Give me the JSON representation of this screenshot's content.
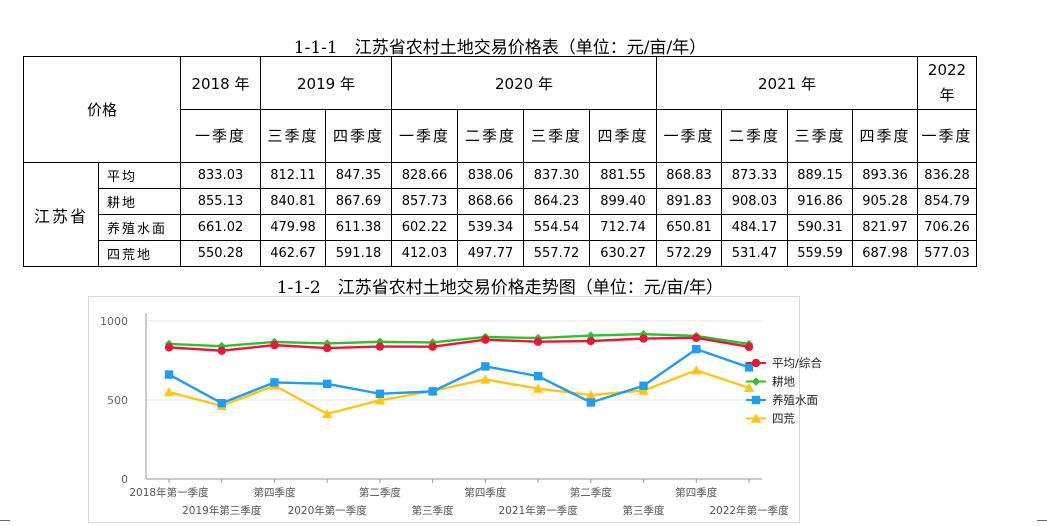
{
  "table": {
    "title": "1-1-1　江苏省农村土地交易价格表（单位：元/亩/年）",
    "corner_label": "价格",
    "years": [
      "2018 年",
      "2019 年",
      "2020 年",
      "2021 年",
      "2022 年"
    ],
    "quarters": [
      "一季度",
      "三季度",
      "四季度",
      "一季度",
      "二季度",
      "三季度",
      "四季度",
      "一季度",
      "二季度",
      "三季度",
      "四季度",
      "一季度"
    ],
    "province": "江苏省",
    "rows": [
      {
        "label": "平均",
        "values": [
          "833.03",
          "812.11",
          "847.35",
          "828.66",
          "838.06",
          "837.30",
          "881.55",
          "868.83",
          "873.33",
          "889.15",
          "893.36",
          "836.28"
        ]
      },
      {
        "label": "耕地",
        "values": [
          "855.13",
          "840.81",
          "867.69",
          "857.73",
          "868.66",
          "864.23",
          "899.40",
          "891.83",
          "908.03",
          "916.86",
          "905.28",
          "854.79"
        ]
      },
      {
        "label": "养殖水面",
        "values": [
          "661.02",
          "479.98",
          "611.38",
          "602.22",
          "539.34",
          "554.54",
          "712.74",
          "650.81",
          "484.17",
          "590.31",
          "821.97",
          "706.26"
        ]
      },
      {
        "label": "四荒地",
        "values": [
          "550.28",
          "462.67",
          "591.18",
          "412.03",
          "497.77",
          "557.72",
          "630.27",
          "572.29",
          "531.47",
          "559.59",
          "687.98",
          "577.03"
        ]
      }
    ]
  },
  "chart_data": {
    "type": "line",
    "title": "1-1-2　江苏省农村土地交易价格走势图（单位：元/亩/年）",
    "xlabel": "",
    "ylabel": "",
    "ylim": [
      0,
      1000
    ],
    "yticks": [
      0,
      500,
      1000
    ],
    "categories": [
      "2018年第一季度",
      "2019年第三季度",
      "第四季度",
      "2020年第一季度",
      "第二季度",
      "第三季度",
      "第四季度",
      "2021年第一季度",
      "第二季度",
      "第三季度",
      "第四季度",
      "2022年第一季度"
    ],
    "legend_position": "right",
    "series": [
      {
        "name": "平均/综合",
        "color": "#e8173a",
        "marker": "circle",
        "values": [
          833.03,
          812.11,
          847.35,
          828.66,
          838.06,
          837.3,
          881.55,
          868.83,
          873.33,
          889.15,
          893.36,
          836.28
        ]
      },
      {
        "name": "耕地",
        "color": "#2fbf2f",
        "marker": "diamond",
        "values": [
          855.13,
          840.81,
          867.69,
          857.73,
          868.66,
          864.23,
          899.4,
          891.83,
          908.03,
          916.86,
          905.28,
          854.79
        ]
      },
      {
        "name": "养殖水面",
        "color": "#1f9df0",
        "marker": "square",
        "values": [
          661.02,
          479.98,
          611.38,
          602.22,
          539.34,
          554.54,
          712.74,
          650.81,
          484.17,
          590.31,
          821.97,
          706.26
        ]
      },
      {
        "name": "四荒",
        "color": "#ffc51a",
        "marker": "triangle",
        "values": [
          550.28,
          462.67,
          591.18,
          412.03,
          497.77,
          557.72,
          630.27,
          572.29,
          531.47,
          559.59,
          687.98,
          577.03
        ]
      }
    ]
  }
}
